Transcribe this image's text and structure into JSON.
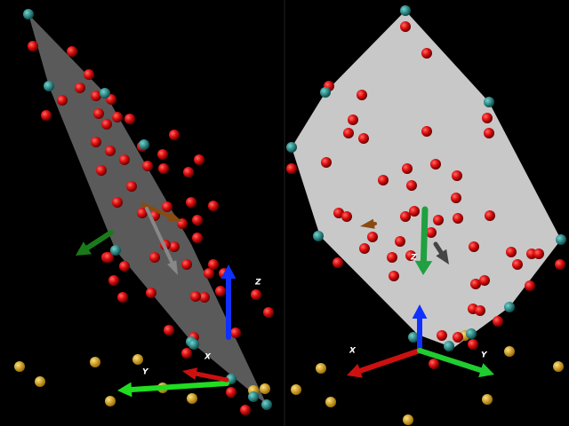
{
  "left_view": {
    "axis_labels": {
      "z": "Z",
      "x": "X",
      "y": "Y"
    }
  },
  "right_view": {
    "axis_labels": {
      "x": "X",
      "y": "Y",
      "z": "Z"
    }
  }
}
